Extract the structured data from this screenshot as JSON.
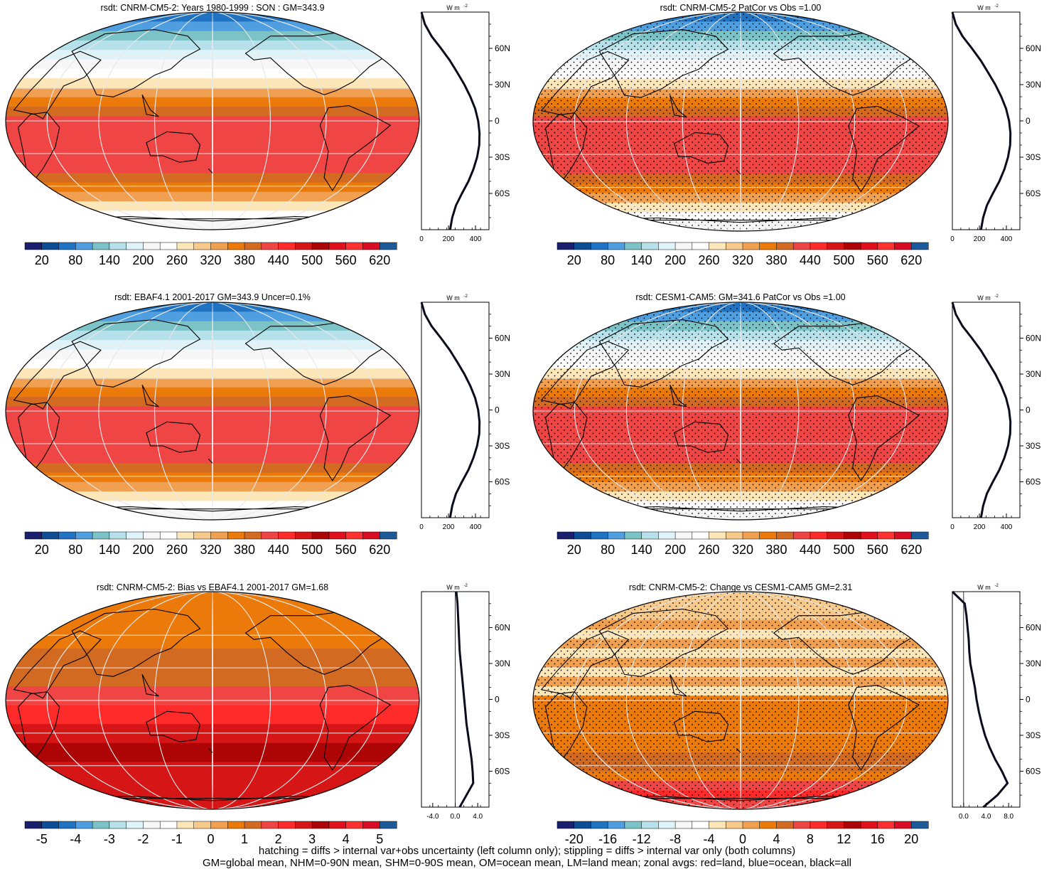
{
  "chart_data": [
    {
      "type": "heatmap",
      "title": "rsdt: CNRM-CM5-2: Years 1980-1999 : SON : GM=343.9",
      "colorbar": {
        "min": 20,
        "max": 620,
        "ticks": [
          "20",
          "80",
          "140",
          "200",
          "260",
          "320",
          "380",
          "440",
          "500",
          "560",
          "620"
        ]
      },
      "zonal_profile": {
        "unit": "W m-2",
        "x_ticks": [
          "0",
          "200",
          "400"
        ],
        "xlim": [
          0,
          500
        ],
        "lat": [
          90,
          80,
          70,
          60,
          50,
          40,
          30,
          20,
          10,
          0,
          -10,
          -20,
          -30,
          -40,
          -50,
          -60,
          -70,
          -80,
          -90
        ],
        "values": [
          0,
          25,
          75,
          145,
          210,
          265,
          318,
          362,
          398,
          420,
          430,
          428,
          412,
          385,
          348,
          300,
          255,
          228,
          212
        ]
      },
      "stipple": false
    },
    {
      "type": "heatmap",
      "title": "rsdt: CNRM-CM5-2 PatCor vs Obs =1.00",
      "colorbar": {
        "min": 20,
        "max": 620,
        "ticks": [
          "20",
          "80",
          "140",
          "200",
          "260",
          "320",
          "380",
          "440",
          "500",
          "560",
          "620"
        ]
      },
      "zonal_profile": {
        "unit": "W m-2",
        "x_ticks": [
          "0",
          "200",
          "400"
        ],
        "xlim": [
          0,
          500
        ],
        "lat": [
          90,
          80,
          70,
          60,
          50,
          40,
          30,
          20,
          10,
          0,
          -10,
          -20,
          -30,
          -40,
          -50,
          -60,
          -70,
          -80,
          -90
        ],
        "values": [
          0,
          25,
          75,
          145,
          210,
          265,
          318,
          362,
          398,
          420,
          430,
          428,
          412,
          385,
          348,
          300,
          255,
          228,
          212
        ]
      },
      "stipple": true
    },
    {
      "type": "heatmap",
      "title": "rsdt: EBAF4.1 2001-2017 GM=343.9 Uncer=0.1%",
      "colorbar": {
        "min": 20,
        "max": 620,
        "ticks": [
          "20",
          "80",
          "140",
          "200",
          "260",
          "320",
          "380",
          "440",
          "500",
          "560",
          "620"
        ]
      },
      "zonal_profile": {
        "unit": "W m-2",
        "x_ticks": [
          "0",
          "200",
          "400"
        ],
        "xlim": [
          0,
          500
        ],
        "lat": [
          90,
          80,
          70,
          60,
          50,
          40,
          30,
          20,
          10,
          0,
          -10,
          -20,
          -30,
          -40,
          -50,
          -60,
          -70,
          -80,
          -90
        ],
        "values": [
          0,
          25,
          75,
          145,
          210,
          265,
          318,
          362,
          398,
          420,
          430,
          428,
          412,
          385,
          348,
          300,
          255,
          228,
          212
        ]
      },
      "stipple": false
    },
    {
      "type": "heatmap",
      "title": "rsdt: CESM1-CAM5: GM=341.6 PatCor vs Obs =1.00",
      "colorbar": {
        "min": 20,
        "max": 620,
        "ticks": [
          "20",
          "80",
          "140",
          "200",
          "260",
          "320",
          "380",
          "440",
          "500",
          "560",
          "620"
        ]
      },
      "zonal_profile": {
        "unit": "W m-2",
        "x_ticks": [
          "0",
          "200",
          "400"
        ],
        "xlim": [
          0,
          500
        ],
        "lat": [
          90,
          80,
          70,
          60,
          50,
          40,
          30,
          20,
          10,
          0,
          -10,
          -20,
          -30,
          -40,
          -50,
          -60,
          -70,
          -80,
          -90
        ],
        "values": [
          0,
          25,
          75,
          145,
          210,
          265,
          318,
          362,
          398,
          420,
          430,
          428,
          412,
          385,
          348,
          300,
          255,
          228,
          212
        ]
      },
      "stipple": true
    },
    {
      "type": "heatmap",
      "title": "rsdt: CNRM-CM5-2: Bias vs EBAF4.1 2001-2017  GM=1.68",
      "colorbar": {
        "min": -5.5,
        "max": 5.5,
        "ticks": [
          "-5",
          "-4",
          "-3",
          "-2",
          "-1",
          "0",
          "1",
          "2",
          "3",
          "4",
          "5"
        ]
      },
      "zonal_profile": {
        "unit": "W m-2",
        "x_ticks": [
          "-4.0",
          "0.0",
          "4.0"
        ],
        "xlim": [
          -6,
          6
        ],
        "lat": [
          90,
          80,
          70,
          60,
          50,
          40,
          30,
          20,
          10,
          0,
          -10,
          -20,
          -30,
          -40,
          -50,
          -60,
          -70,
          -80,
          -90
        ],
        "values": [
          0.2,
          0.4,
          0.5,
          0.6,
          0.7,
          0.8,
          1.0,
          1.2,
          1.4,
          1.6,
          1.8,
          2.0,
          2.3,
          2.6,
          2.9,
          3.1,
          3.2,
          2.0,
          0.8
        ]
      },
      "stipple": false
    },
    {
      "type": "heatmap",
      "title": "rsdt: CNRM-CM5-2: Change vs CESM1-CAM5 GM=2.31",
      "colorbar": {
        "min": -22,
        "max": 22,
        "ticks": [
          "-20",
          "-16",
          "-12",
          "-8",
          "-4",
          "0",
          "4",
          "8",
          "12",
          "16",
          "20"
        ]
      },
      "zonal_profile": {
        "unit": "W m-2",
        "x_ticks": [
          "0.0",
          "4.0",
          "8.0"
        ],
        "xlim": [
          -2,
          10
        ],
        "lat": [
          90,
          80,
          70,
          60,
          50,
          40,
          30,
          20,
          10,
          0,
          -10,
          -20,
          -30,
          -40,
          -50,
          -60,
          -70,
          -80,
          -90
        ],
        "values": [
          -2,
          0.2,
          0.5,
          0.7,
          0.9,
          1.0,
          1.2,
          1.6,
          2.0,
          2.3,
          2.7,
          3.2,
          3.8,
          4.6,
          5.6,
          6.8,
          7.8,
          6.0,
          3.5
        ]
      },
      "stipple": true
    }
  ],
  "lat_ticks": [
    "60N",
    "30N",
    "0",
    "30S",
    "60S"
  ],
  "colors": [
    "#1a1f6e",
    "#0d4d96",
    "#1f73c2",
    "#4f9ee0",
    "#7cc3c8",
    "#b6e0ea",
    "#dff4fa",
    "#f7f7f7",
    "#ffffff",
    "#fde6b8",
    "#f7c98a",
    "#f0a050",
    "#ec7a0b",
    "#d26a22",
    "#f04545",
    "#ff2b2b",
    "#d51516",
    "#ad0505",
    "#e0101c",
    "#ff3030",
    "#d80d24",
    "#1c5a9a"
  ],
  "footer": {
    "line1": "hatching = diffs > internal var+obs uncertainty (left column only); stippling = diffs > internal var only (both columns)",
    "line2": "GM=global mean, NHM=0-90N mean, SHM=0-90S mean, OM=ocean mean, LM=land mean; zonal avgs: red=land, blue=ocean, black=all"
  }
}
